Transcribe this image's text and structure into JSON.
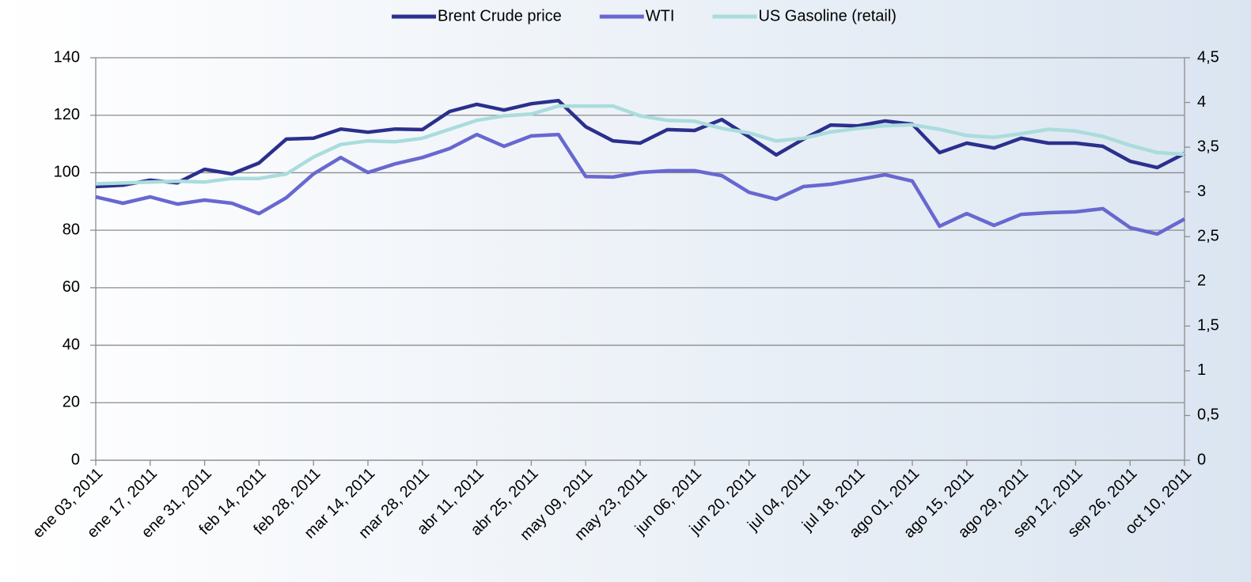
{
  "chart_data": {
    "type": "line",
    "categories": [
      "ene 03, 2011",
      null,
      "ene 17, 2011",
      null,
      "ene 31, 2011",
      null,
      "feb 14, 2011",
      null,
      "feb 28, 2011",
      null,
      "mar 14, 2011",
      null,
      "mar 28, 2011",
      null,
      "abr 11, 2011",
      null,
      "abr 25, 2011",
      null,
      "may 09, 2011",
      null,
      "may 23, 2011",
      null,
      "jun 06, 2011",
      null,
      "jun 20, 2011",
      null,
      "jul 04, 2011",
      null,
      "jul 18, 2011",
      null,
      "ago 01, 2011",
      null,
      "ago 15, 2011",
      null,
      "ago 29, 2011",
      null,
      "sep 12, 2011",
      null,
      "sep 26, 2011",
      null,
      "oct 10, 2011"
    ],
    "series": [
      {
        "name": "Brent Crude price",
        "color": "#2b2f8c",
        "values": [
          95.2,
          95.7,
          97.4,
          96.5,
          101.2,
          99.6,
          103.4,
          111.7,
          112,
          115.2,
          114.1,
          115.2,
          115,
          121.3,
          123.8,
          121.8,
          124,
          125.1,
          116,
          111.1,
          110.3,
          115,
          114.7,
          118.5,
          112.5,
          106.2,
          111.7,
          116.6,
          116.3,
          118,
          116.9,
          107,
          110.3,
          108.6,
          112,
          110.3,
          110.3,
          109.2,
          104,
          101.8,
          106.7
        ]
      },
      {
        "name": "WTI",
        "color": "#6868d0",
        "values": [
          91.6,
          89.4,
          91.6,
          89.1,
          90.5,
          89.4,
          85.8,
          91.3,
          99.6,
          105.3,
          100.1,
          103.1,
          105.3,
          108.4,
          113.3,
          109.2,
          112.8,
          113.3,
          98.7,
          98.5,
          100.1,
          100.7,
          100.7,
          99,
          93.2,
          90.8,
          95.2,
          96,
          97.6,
          99.3,
          97.1,
          81.4,
          85.8,
          81.7,
          85.5,
          86.1,
          86.4,
          87.5,
          80.9,
          78.7,
          83.9
        ]
      },
      {
        "name": "US Gasoline (retail)",
        "color": "#aadcdc",
        "axis": "y2",
        "values": [
          3.09,
          3.1,
          3.11,
          3.12,
          3.11,
          3.15,
          3.15,
          3.2,
          3.39,
          3.53,
          3.57,
          3.56,
          3.6,
          3.7,
          3.8,
          3.85,
          3.87,
          3.96,
          3.96,
          3.96,
          3.85,
          3.8,
          3.79,
          3.71,
          3.66,
          3.57,
          3.6,
          3.67,
          3.71,
          3.74,
          3.75,
          3.7,
          3.63,
          3.61,
          3.65,
          3.7,
          3.68,
          3.62,
          3.52,
          3.44,
          3.42
        ]
      }
    ],
    "ylim": [
      0,
      140
    ],
    "yticks": [
      0,
      20,
      40,
      60,
      80,
      100,
      120,
      140
    ],
    "y2lim": [
      0,
      4.5
    ],
    "y2ticks": [
      0,
      {
        "value": 0.5,
        "label": "0,5"
      },
      1,
      {
        "value": 1.5,
        "label": "1,5"
      },
      2,
      {
        "value": 2.5,
        "label": "2,5"
      },
      3,
      {
        "value": 3.5,
        "label": "3,5"
      },
      4,
      {
        "value": 4.5,
        "label": "4,5"
      }
    ],
    "grid": true,
    "legend": "top"
  }
}
